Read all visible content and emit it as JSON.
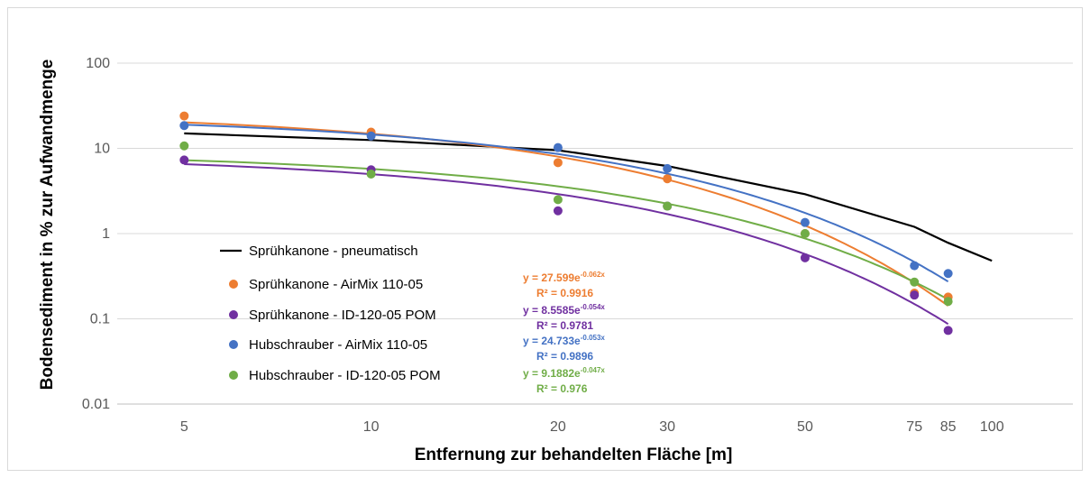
{
  "chart_data": {
    "type": "scatter",
    "xlabel": "Entfernung zur behandelten Fläche [m]",
    "ylabel": "Bodensediment in % zur Aufwandmenge",
    "x_scale": "log",
    "y_scale": "log",
    "x_ticks": [
      5,
      10,
      20,
      30,
      50,
      75,
      85,
      100
    ],
    "x_tick_labels": [
      "5",
      "10",
      "20",
      "30",
      "50",
      "75",
      "85",
      "100"
    ],
    "y_ticks": [
      0.01,
      0.1,
      1,
      10,
      100
    ],
    "y_tick_labels": [
      "0.01",
      "0.1",
      "1",
      "10",
      "100"
    ],
    "xlim": [
      3.9,
      135
    ],
    "ylim": [
      0.01,
      100
    ],
    "grid": "horizontal",
    "legend_position": "lower-left",
    "series": [
      {
        "name": "Sprühkanone - pneumatisch",
        "kind": "line",
        "color": "#000000",
        "x": [
          5,
          10,
          20,
          30,
          50,
          75,
          85,
          100
        ],
        "y": [
          15,
          12.5,
          9.5,
          6.2,
          2.9,
          1.2,
          0.78,
          0.48
        ]
      },
      {
        "name": "Sprühkanone - AirMix 110-05",
        "kind": "scatter",
        "color": "#ED7D31",
        "x": [
          5,
          10,
          20,
          30,
          50,
          75,
          85
        ],
        "y": [
          24,
          15.5,
          6.8,
          4.4,
          1.0,
          0.2,
          0.18
        ],
        "trend": {
          "a": 27.599,
          "b": -0.062
        },
        "equation": "y = 27.599e",
        "exponent": "-0.062x",
        "r2": "R² = 0.9916"
      },
      {
        "name": "Sprühkanone - ID-120-05 POM",
        "kind": "scatter",
        "color": "#7030A0",
        "x": [
          5,
          10,
          20,
          30,
          50,
          75,
          85
        ],
        "y": [
          7.3,
          5.6,
          1.85,
          2.1,
          0.52,
          0.19,
          0.073
        ],
        "trend": {
          "a": 8.5585,
          "b": -0.054
        },
        "equation": "y = 8.5585e",
        "exponent": "-0.054x",
        "r2": "R² = 0.9781"
      },
      {
        "name": "Hubschrauber - AirMix 110-05",
        "kind": "scatter",
        "color": "#4472C4",
        "x": [
          5,
          10,
          20,
          30,
          50,
          75,
          85
        ],
        "y": [
          18.5,
          14,
          10.2,
          5.8,
          1.35,
          0.42,
          0.34
        ],
        "trend": {
          "a": 24.733,
          "b": -0.053
        },
        "equation": "y = 24.733e",
        "exponent": "-0.053x",
        "r2": "R² = 0.9896"
      },
      {
        "name": "Hubschrauber - ID-120-05 POM",
        "kind": "scatter",
        "color": "#70AD47",
        "x": [
          5,
          10,
          20,
          30,
          50,
          75,
          85
        ],
        "y": [
          10.7,
          5.0,
          2.5,
          2.1,
          1.0,
          0.27,
          0.16
        ],
        "trend": {
          "a": 9.1882,
          "b": -0.047
        },
        "equation": "y = 9.1882e",
        "exponent": "-0.047x",
        "r2": "R² = 0.976"
      }
    ]
  }
}
